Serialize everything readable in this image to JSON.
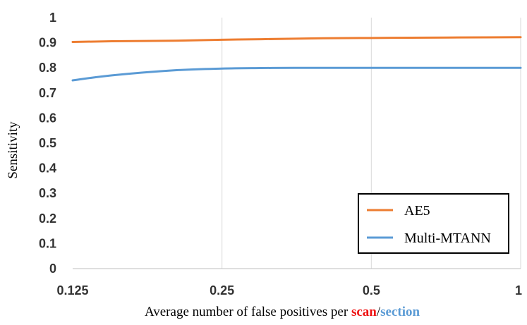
{
  "chart_data": {
    "type": "line",
    "x_scale": "log2",
    "x_ticks": [
      0.125,
      0.25,
      0.5,
      1
    ],
    "x_tick_labels": [
      "0.125",
      "0.25",
      "0.5",
      "1"
    ],
    "y_ticks": [
      0,
      0.1,
      0.2,
      0.3,
      0.4,
      0.5,
      0.6,
      0.7,
      0.8,
      0.9,
      1
    ],
    "y_tick_labels": [
      "0",
      "0.1",
      "0.2",
      "0.3",
      "0.4",
      "0.5",
      "0.6",
      "0.7",
      "0.8",
      "0.9",
      "1"
    ],
    "ylim": [
      0,
      1
    ],
    "xlim": [
      0.125,
      1
    ],
    "grid": "vertical",
    "legend_position": "bottom-right",
    "ylabel": "Sensitivity",
    "xlabel_parts": [
      {
        "text": "Average number of false positives per ",
        "color": "#000000",
        "bold": false
      },
      {
        "text": "scan",
        "color": "#ee1111",
        "bold": true
      },
      {
        "text": "/",
        "color": "#000000",
        "bold": false
      },
      {
        "text": "section",
        "color": "#5b9bd5",
        "bold": true
      }
    ],
    "series": [
      {
        "name": "AE5",
        "color": "#ed7d31",
        "x": [
          0.125,
          0.15,
          0.2,
          0.25,
          0.3,
          0.4,
          0.5,
          0.6,
          0.75,
          1
        ],
        "y": [
          0.903,
          0.906,
          0.908,
          0.912,
          0.914,
          0.918,
          0.919,
          0.92,
          0.921,
          0.922
        ]
      },
      {
        "name": "Multi-MTANN",
        "color": "#5b9bd5",
        "x": [
          0.125,
          0.15,
          0.2,
          0.25,
          0.3,
          0.35,
          0.5,
          0.75,
          1
        ],
        "y": [
          0.75,
          0.77,
          0.79,
          0.797,
          0.799,
          0.8,
          0.8,
          0.8,
          0.8
        ]
      }
    ]
  }
}
